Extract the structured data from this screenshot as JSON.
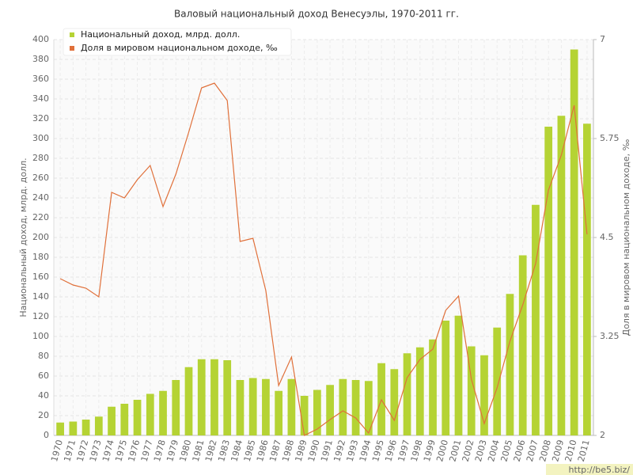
{
  "chart_data": {
    "type": "bar-line",
    "title": "Валовый национальный доход Венесуэлы, 1970-2011 гг.",
    "y_label": "Национальный доход, млрд. долл.",
    "y2_label": "Доля в мировом национальном доходе, ‰",
    "categories": [
      "1970",
      "1971",
      "1972",
      "1973",
      "1974",
      "1975",
      "1976",
      "1977",
      "1978",
      "1979",
      "1980",
      "1981",
      "1982",
      "1983",
      "1984",
      "1985",
      "1986",
      "1987",
      "1988",
      "1989",
      "1990",
      "1991",
      "1992",
      "1993",
      "1994",
      "1995",
      "1996",
      "1997",
      "1998",
      "1999",
      "2000",
      "2001",
      "2002",
      "2003",
      "2004",
      "2005",
      "2006",
      "2007",
      "2008",
      "2009",
      "2010",
      "2011"
    ],
    "series": [
      {
        "name": "Национальный доход, млрд. долл.",
        "color": "#b5d334",
        "kind": "bar",
        "values": [
          13,
          14,
          16,
          19,
          29,
          32,
          36,
          42,
          45,
          56,
          69,
          77,
          77,
          76,
          56,
          58,
          57,
          45,
          57,
          40,
          46,
          51,
          57,
          56,
          55,
          73,
          67,
          83,
          89,
          97,
          116,
          121,
          90,
          81,
          109,
          143,
          182,
          233,
          312,
          323,
          390,
          315
        ]
      },
      {
        "name": "Доля в мировом национальном доходе, ‰",
        "color": "#e0703a",
        "kind": "line",
        "axis": "y2",
        "values": [
          3.98,
          3.9,
          3.86,
          3.75,
          5.07,
          5.0,
          5.23,
          5.41,
          4.89,
          5.3,
          5.83,
          6.39,
          6.45,
          6.23,
          4.45,
          4.49,
          3.83,
          2.63,
          2.99,
          2.0,
          2.08,
          2.2,
          2.31,
          2.22,
          2.03,
          2.45,
          2.19,
          2.73,
          2.96,
          3.09,
          3.58,
          3.76,
          2.71,
          2.15,
          2.6,
          3.19,
          3.65,
          4.17,
          5.1,
          5.54,
          6.17,
          4.54
        ]
      }
    ],
    "ylim": [
      0,
      400
    ],
    "yticks": [
      0,
      20,
      40,
      60,
      80,
      100,
      120,
      140,
      160,
      180,
      200,
      220,
      240,
      260,
      280,
      300,
      320,
      340,
      360,
      380,
      400
    ],
    "y2lim": [
      2,
      7
    ],
    "y2ticks": [
      2,
      3.25,
      4.5,
      5.75,
      7
    ],
    "grid": true,
    "legend": "top-left",
    "watermark": "http://be5.biz/"
  }
}
